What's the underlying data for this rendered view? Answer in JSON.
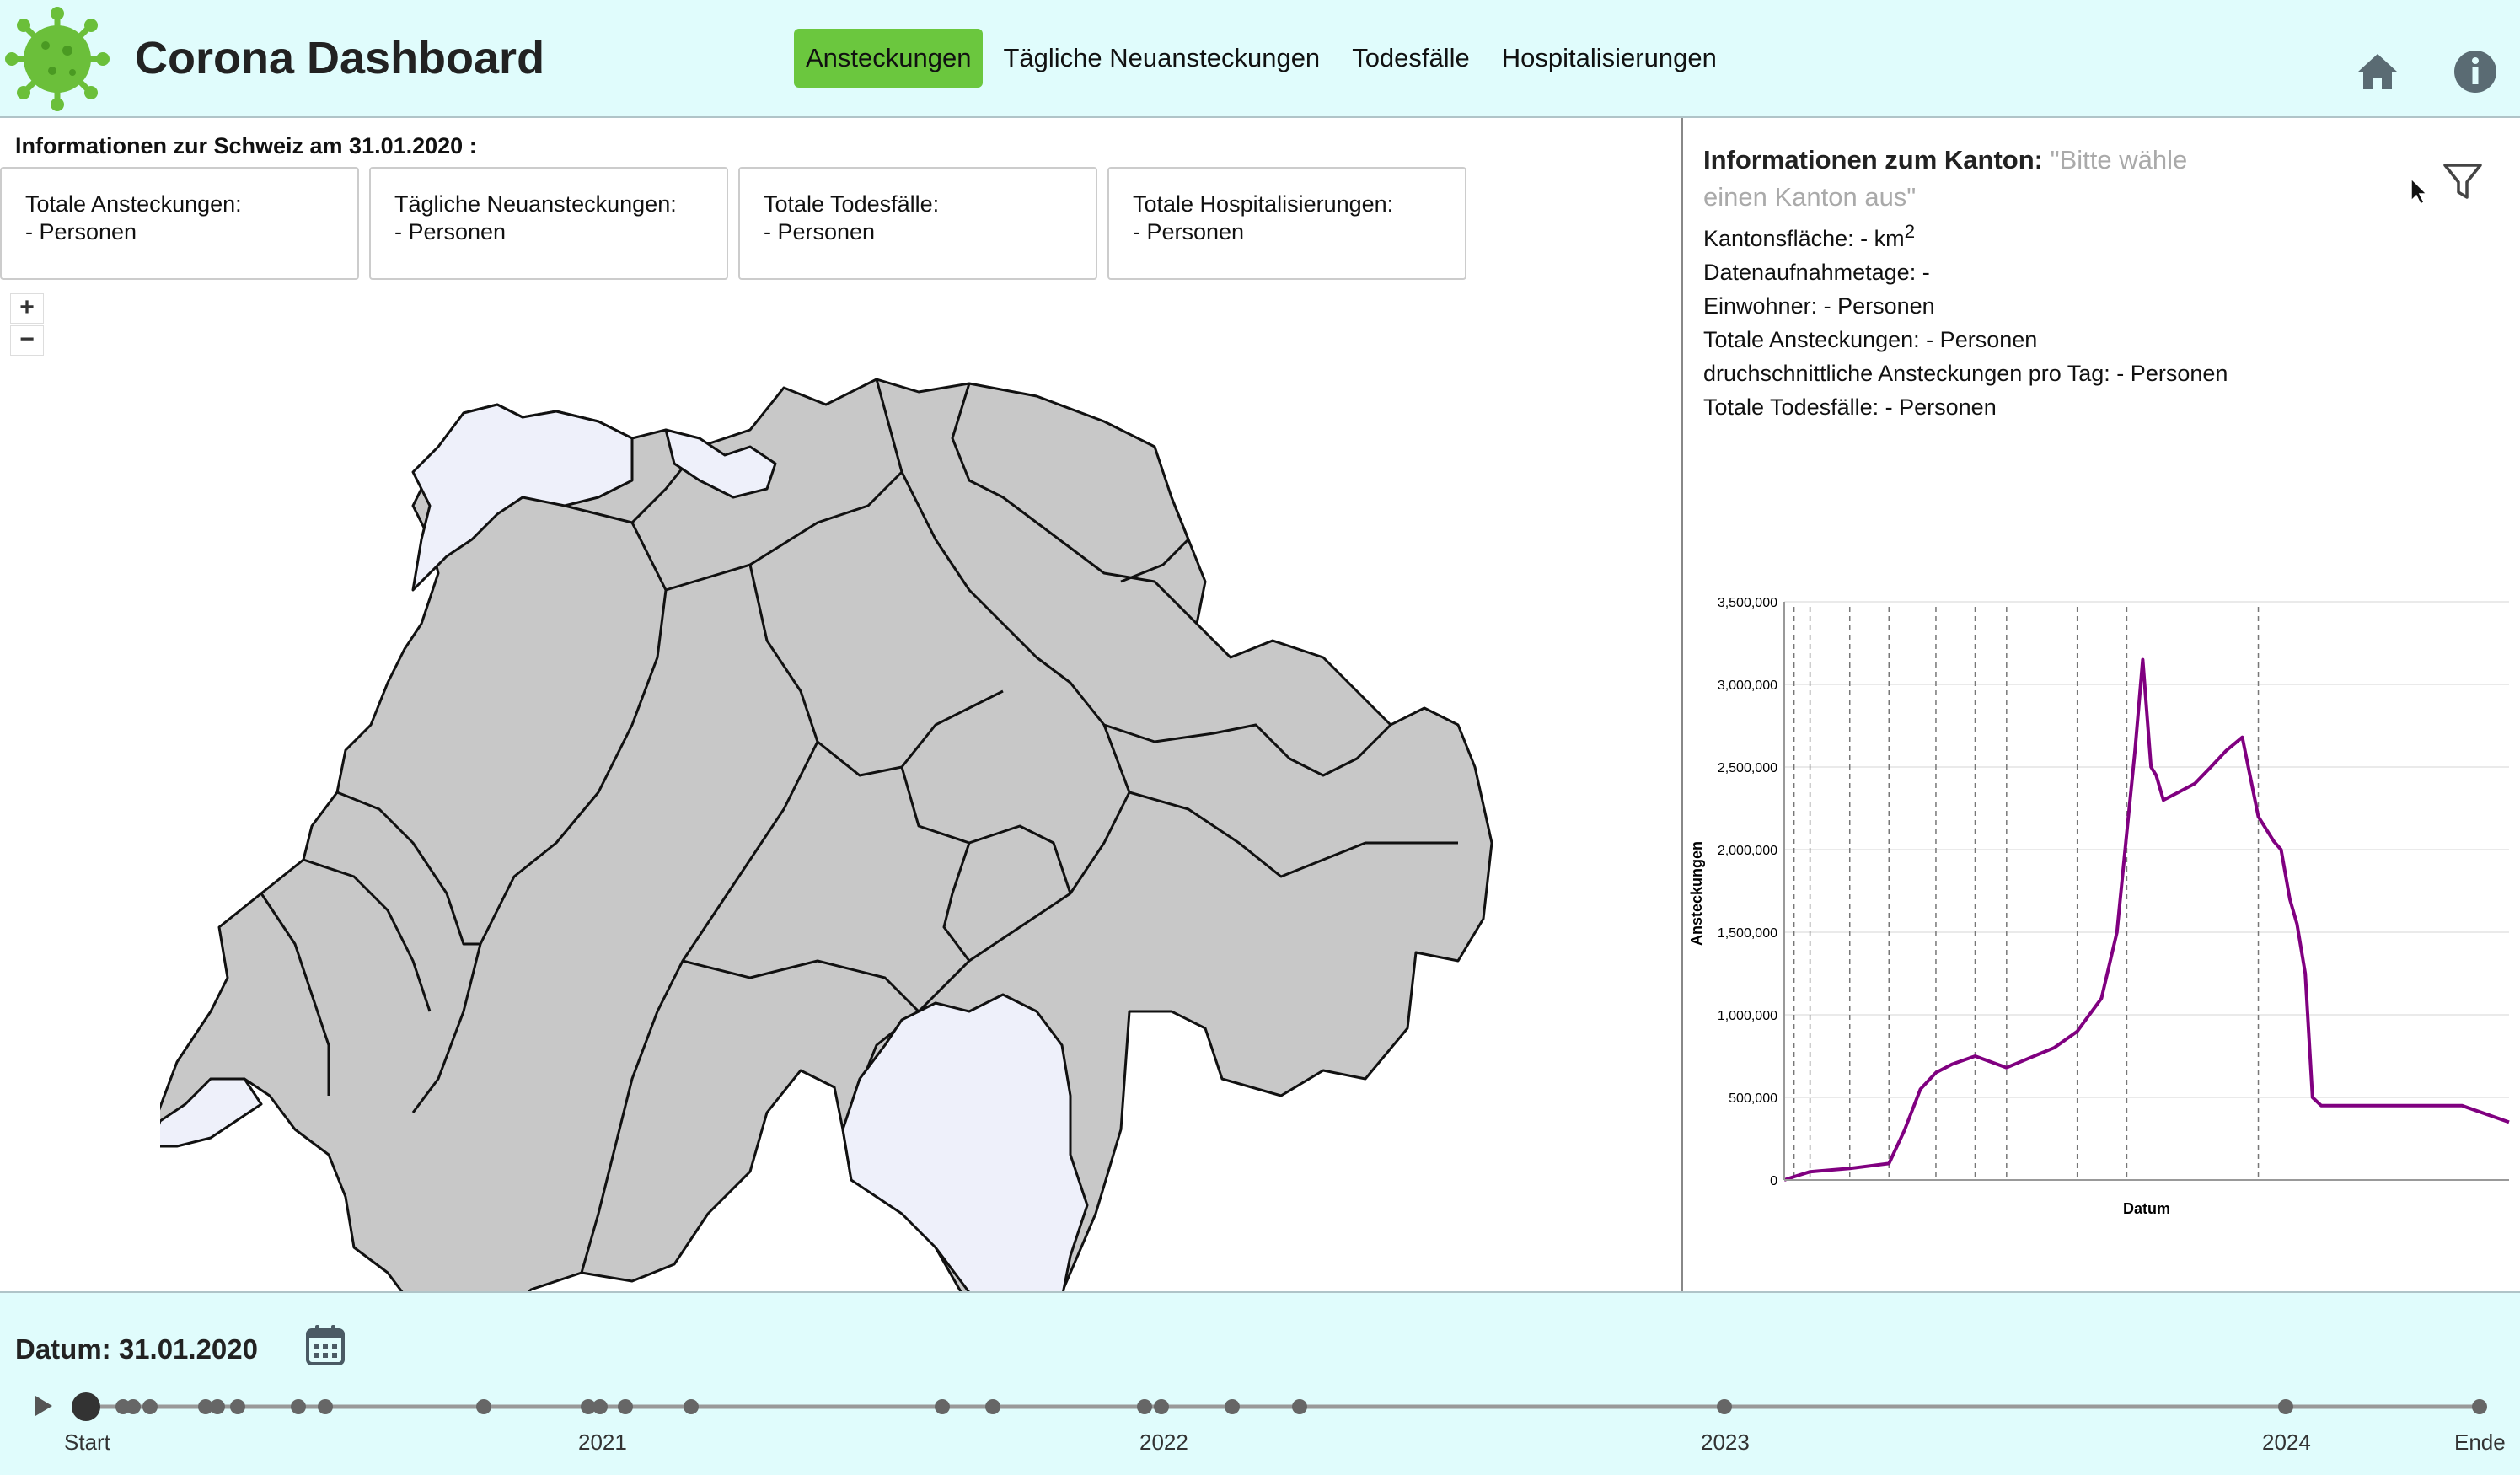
{
  "app": {
    "title": "Corona Dashboard"
  },
  "nav": {
    "tabs": [
      {
        "label": "Ansteckungen",
        "active": true
      },
      {
        "label": "Tägliche Neuansteckungen",
        "active": false
      },
      {
        "label": "Todesfälle",
        "active": false
      },
      {
        "label": "Hospitalisierungen",
        "active": false
      }
    ]
  },
  "icons": {
    "logo": "virus-logo-icon",
    "home": "home-icon",
    "info": "info-icon",
    "filter": "filter-icon",
    "calendar": "calendar-icon",
    "play": "play-icon"
  },
  "colors": {
    "header_bg": "#e0fcfc",
    "active_tab": "#6bc73e",
    "chart_line": "#800080",
    "canton_fill": "#c8c8c8",
    "canton_empty": "#eef0fa"
  },
  "switzerland": {
    "title": "Informationen zur Schweiz am 31.01.2020 :",
    "stats": [
      {
        "label": "Totale Ansteckungen:",
        "value": "- Personen"
      },
      {
        "label": "Tägliche Neuansteckungen:",
        "value": "- Personen"
      },
      {
        "label": "Totale Todesfälle:",
        "value": "- Personen"
      },
      {
        "label": "Totale Hospitalisierungen:",
        "value": "- Personen"
      }
    ]
  },
  "map_controls": {
    "zoom_in": "+",
    "zoom_out": "−"
  },
  "kanton": {
    "heading": "Informationen zum Kanton:",
    "hint": "\"Bitte wähle einen Kanton aus\"",
    "area_label": "Kantonsfläche: - km",
    "area_sup": "2",
    "lines": [
      "Datenaufnahmetage: -",
      "Einwohner: - Personen",
      "Totale Ansteckungen: - Personen",
      "druchschnittliche Ansteckungen pro Tag: - Personen",
      "Totale Todesfälle: - Personen"
    ]
  },
  "chart_data": {
    "type": "line",
    "xlabel": "Datum",
    "ylabel": "Ansteckungen",
    "ylim": [
      0,
      3500000
    ],
    "yticks": [
      "0",
      "500,000",
      "1,000,000",
      "1,500,000",
      "2,000,000",
      "2,500,000",
      "3,000,000",
      "3,500,000"
    ],
    "ytick_values": [
      0,
      500000,
      1000000,
      1500000,
      2000000,
      2500000,
      3000000,
      3500000
    ],
    "grid": true,
    "series": [
      {
        "x": [
          "2020-02-25",
          "2020-03-15",
          "2020-04-15",
          "2020-07-01",
          "2020-09-15",
          "2020-10-15",
          "2020-11-15",
          "2020-12-15",
          "2021-01-15",
          "2021-03-01",
          "2021-05-01",
          "2021-07-01",
          "2021-08-01",
          "2021-09-15",
          "2021-11-01",
          "2021-12-01",
          "2021-12-20",
          "2022-01-05",
          "2022-01-20",
          "2022-02-05",
          "2022-02-15",
          "2022-03-01",
          "2022-04-01",
          "2022-05-01",
          "2022-06-01",
          "2022-07-01",
          "2022-08-01",
          "2022-09-01",
          "2022-10-01",
          "2022-10-15",
          "2022-11-01",
          "2022-11-15",
          "2022-12-01",
          "2022-12-15",
          "2023-01-01",
          "2023-02-01",
          "2023-04-01",
          "2023-06-01",
          "2023-08-01",
          "2023-10-01",
          "2023-12-31"
        ],
        "y": [
          0,
          20000,
          50000,
          70000,
          100000,
          300000,
          550000,
          650000,
          700000,
          750000,
          680000,
          760000,
          800000,
          900000,
          1100000,
          1500000,
          2100000,
          2600000,
          3150000,
          2500000,
          2450000,
          2300000,
          2350000,
          2400000,
          2500000,
          2600000,
          2680000,
          2200000,
          2050000,
          2000000,
          1700000,
          1550000,
          1250000,
          500000,
          450000,
          450000,
          450000,
          450000,
          450000,
          450000,
          350000
        ]
      }
    ]
  },
  "timeline": {
    "date_label": "Datum: 31.01.2020",
    "ticks": [
      "Start",
      "2021",
      "2022",
      "2023",
      "2024",
      "Ende"
    ]
  }
}
